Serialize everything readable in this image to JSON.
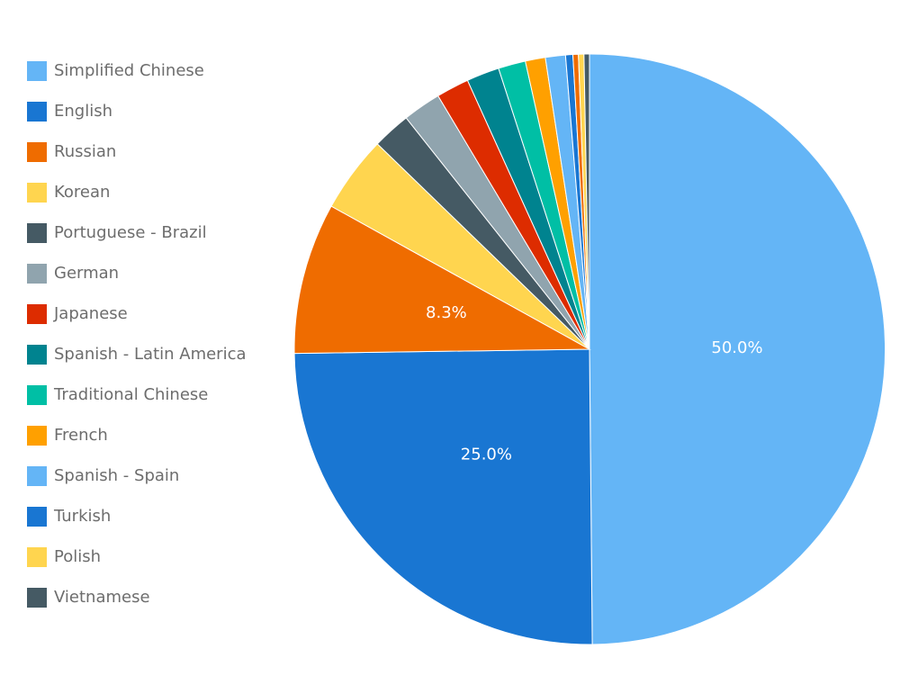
{
  "chart_data": {
    "type": "pie",
    "title": "",
    "legend_position": "left",
    "start_angle": "12 o'clock, clockwise",
    "slices": [
      {
        "label": "Simplified Chinese",
        "value": 50.0,
        "color": "#64b5f6",
        "display": "50.0%"
      },
      {
        "label": "English",
        "value": 25.0,
        "color": "#1976d2",
        "display": "25.0%"
      },
      {
        "label": "Russian",
        "value": 8.3,
        "color": "#ef6c00",
        "display": "8.3%"
      },
      {
        "label": "Korean",
        "value": 4.2,
        "color": "#ffd54f",
        "display": ""
      },
      {
        "label": "Portuguese - Brazil",
        "value": 2.1,
        "color": "#455a64",
        "display": ""
      },
      {
        "label": "German",
        "value": 2.1,
        "color": "#90a4ae",
        "display": ""
      },
      {
        "label": "Japanese",
        "value": 1.8,
        "color": "#dd2c00",
        "display": ""
      },
      {
        "label": "Spanish - Latin America",
        "value": 1.8,
        "color": "#00838f",
        "display": ""
      },
      {
        "label": "Traditional Chinese",
        "value": 1.5,
        "color": "#00bfa5",
        "display": ""
      },
      {
        "label": "French",
        "value": 1.1,
        "color": "#ffa000",
        "display": ""
      },
      {
        "label": "Spanish - Spain",
        "value": 1.1,
        "color": "#64b5f6",
        "display": ""
      },
      {
        "label": "Turkish",
        "value": 0.4,
        "color": "#1976d2",
        "display": ""
      },
      {
        "label": "",
        "value": 0.3,
        "color": "#ef6c00",
        "display": ""
      },
      {
        "label": "Polish",
        "value": 0.3,
        "color": "#ffd54f",
        "display": ""
      },
      {
        "label": "Vietnamese",
        "value": 0.3,
        "color": "#455a64",
        "display": ""
      }
    ]
  }
}
